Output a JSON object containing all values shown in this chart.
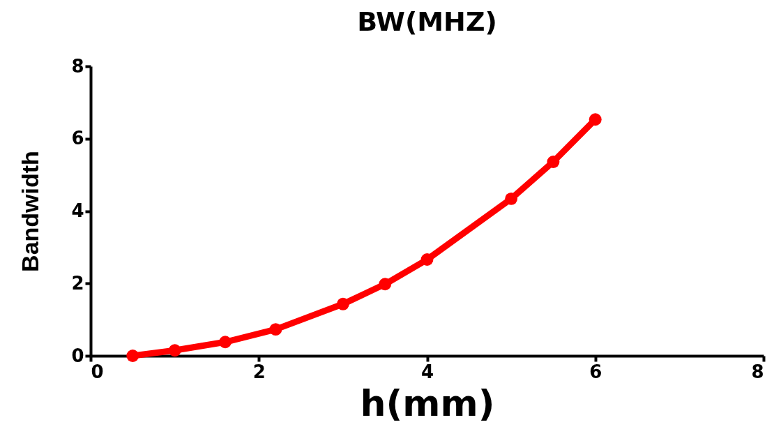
{
  "chart_data": {
    "type": "line",
    "title": "BW(MHZ)",
    "xlabel": "h(mm)",
    "ylabel": "Bandwidth",
    "x": [
      0.5,
      1.0,
      1.6,
      2.2,
      3.0,
      3.5,
      4.0,
      5.0,
      5.5,
      6.0
    ],
    "series": [
      {
        "color": "#ff0000",
        "values": [
          0.0,
          0.15,
          0.38,
          0.73,
          1.43,
          1.98,
          2.66,
          4.34,
          5.36,
          6.53
        ]
      }
    ],
    "xlim": [
      0,
      8
    ],
    "xticks": [
      0,
      2,
      4,
      6,
      8
    ],
    "ylim": [
      0,
      8
    ],
    "yticks": [
      0,
      2,
      4,
      6,
      8
    ],
    "grid": false,
    "legend": false,
    "marker": "circle",
    "line_style": "solid"
  }
}
